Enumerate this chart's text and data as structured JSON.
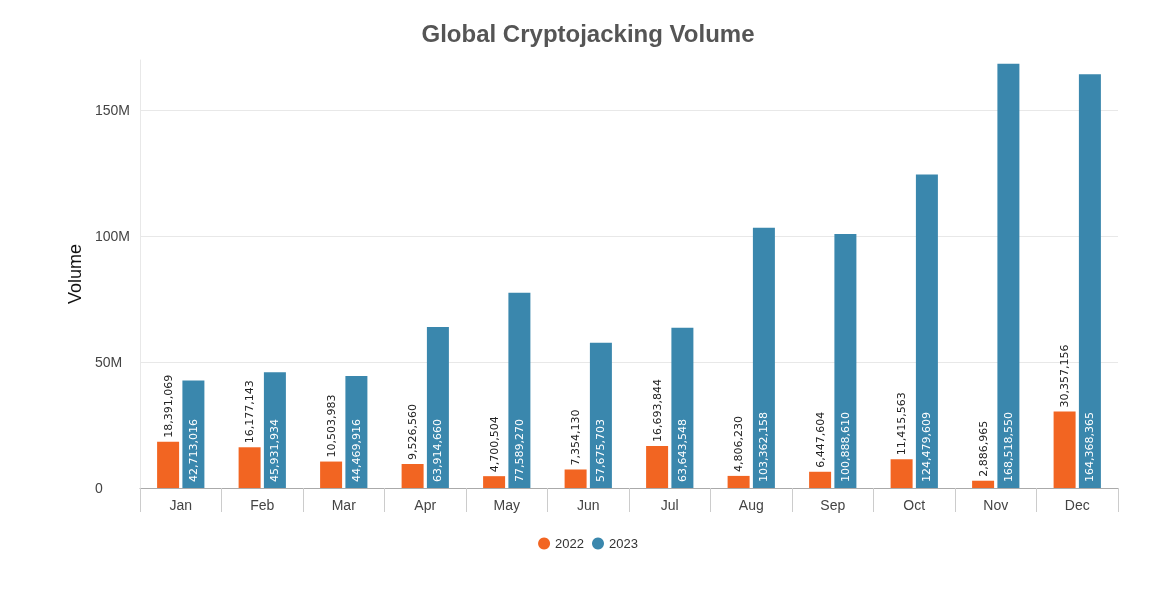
{
  "chart_data": {
    "type": "bar",
    "title": "Global Cryptojacking Volume",
    "ylabel": "Volume",
    "categories": [
      "Jan",
      "Feb",
      "Mar",
      "Apr",
      "May",
      "Jun",
      "Jul",
      "Aug",
      "Sep",
      "Oct",
      "Nov",
      "Dec"
    ],
    "series": [
      {
        "name": "2022",
        "color": "#f26522",
        "values": [
          18391069,
          16177143,
          10503983,
          9526560,
          4700504,
          7354130,
          16693844,
          4806230,
          6447604,
          11415563,
          2886965,
          30357156
        ],
        "value_labels": [
          "18,391,069",
          "16,177,143",
          "10,503,983",
          "9,526,560",
          "4,700,504",
          "7,354,130",
          "16,693,844",
          "4,806,230",
          "6,447,604",
          "11,415,563",
          "2,886,965",
          "30,357,156"
        ]
      },
      {
        "name": "2023",
        "color": "#3a87ad",
        "values": [
          42713016,
          45931934,
          44469916,
          63914660,
          77589270,
          57675703,
          63643548,
          103362158,
          100888610,
          124479609,
          168518550,
          164368365
        ],
        "value_labels": [
          "42,713,016",
          "45,931,934",
          "44,469,916",
          "63,914,660",
          "77,589,270",
          "57,675,703",
          "63,643,548",
          "103,362,158",
          "100,888,610",
          "124,479,609",
          "168,518,550",
          "164,368,365"
        ]
      }
    ],
    "ylim": [
      0,
      170000000
    ],
    "yticks": [
      {
        "value": 0,
        "label": "0"
      },
      {
        "value": 50000000,
        "label": "50M"
      },
      {
        "value": 100000000,
        "label": "100M"
      },
      {
        "value": 150000000,
        "label": "150M"
      }
    ],
    "grid": "y",
    "legend": "bottom"
  }
}
